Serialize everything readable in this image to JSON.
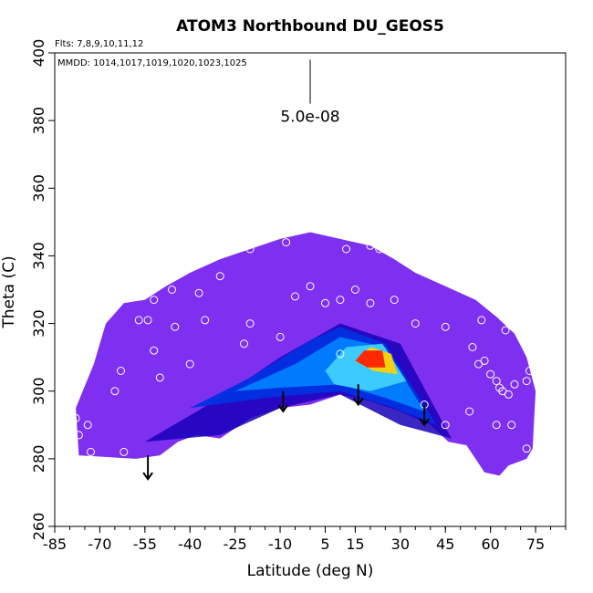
{
  "chart_data": {
    "type": "heatmap",
    "title": "ATOM3 Northbound DU_GEOS5",
    "flights_label": "Flts: 7,8,9,10,11,12",
    "dates_label": "MMDD: 1014,1017,1019,1020,1023,1025",
    "xlabel": "Latitude (deg N)",
    "ylabel": "Theta (C)",
    "xlim": [
      -85,
      85
    ],
    "ylim": [
      260,
      400
    ],
    "x_ticks": [
      -85,
      -70,
      -55,
      -40,
      -25,
      -10,
      5,
      15,
      30,
      45,
      60,
      75
    ],
    "y_ticks": [
      260,
      280,
      300,
      320,
      340,
      360,
      380,
      400
    ],
    "scale_bar": {
      "label": "5.0e-08",
      "x": 0,
      "y_top": 398,
      "y_bottom": 385
    },
    "colors": {
      "background_field": "#7f2ff0",
      "low": "#1a00c8",
      "mid": "#00a8ff",
      "high_light": "#e0f8ff",
      "peak": "#ff2000",
      "peak_edge": "#ffd000",
      "markers": "#ffffff",
      "arrows": "#000000"
    },
    "field_outline": [
      [
        -77,
        281
      ],
      [
        -78,
        295
      ],
      [
        -72,
        308
      ],
      [
        -68,
        320
      ],
      [
        -62,
        326
      ],
      [
        -55,
        327
      ],
      [
        -48,
        331
      ],
      [
        -40,
        335
      ],
      [
        -30,
        339
      ],
      [
        -20,
        342
      ],
      [
        -10,
        345
      ],
      [
        0,
        347
      ],
      [
        10,
        345
      ],
      [
        20,
        343
      ],
      [
        28,
        339
      ],
      [
        35,
        335
      ],
      [
        45,
        331
      ],
      [
        55,
        327
      ],
      [
        62,
        322
      ],
      [
        68,
        317
      ],
      [
        72,
        310
      ],
      [
        75,
        300
      ],
      [
        74,
        283
      ],
      [
        72,
        280
      ],
      [
        66,
        278
      ],
      [
        63,
        275
      ],
      [
        58,
        276
      ],
      [
        52,
        284
      ],
      [
        46,
        285
      ],
      [
        40,
        290
      ],
      [
        30,
        294
      ],
      [
        20,
        297
      ],
      [
        10,
        299
      ],
      [
        0,
        296
      ],
      [
        -10,
        295
      ],
      [
        -20,
        292
      ],
      [
        -30,
        286
      ],
      [
        -38,
        287
      ],
      [
        -44,
        285
      ],
      [
        -50,
        281
      ],
      [
        -58,
        280
      ]
    ],
    "plume_layers": [
      {
        "level": 1,
        "points": [
          [
            -55,
            285
          ],
          [
            -30,
            298
          ],
          [
            -10,
            310
          ],
          [
            10,
            320
          ],
          [
            30,
            314
          ],
          [
            47,
            286
          ],
          [
            30,
            290
          ],
          [
            10,
            299
          ],
          [
            -10,
            295
          ],
          [
            -30,
            287
          ]
        ]
      },
      {
        "level": 2,
        "points": [
          [
            -40,
            295
          ],
          [
            -20,
            304
          ],
          [
            0,
            315
          ],
          [
            10,
            319
          ],
          [
            25,
            314
          ],
          [
            42,
            290
          ],
          [
            28,
            295
          ],
          [
            10,
            300
          ],
          [
            -15,
            298
          ]
        ]
      },
      {
        "level": 3,
        "points": [
          [
            -25,
            300
          ],
          [
            -5,
            308
          ],
          [
            10,
            316
          ],
          [
            25,
            313
          ],
          [
            38,
            294
          ],
          [
            25,
            298
          ],
          [
            10,
            302
          ],
          [
            -10,
            301
          ]
        ]
      },
      {
        "level": 4,
        "points": [
          [
            5,
            306
          ],
          [
            12,
            313
          ],
          [
            24,
            314
          ],
          [
            32,
            303
          ],
          [
            20,
            300
          ],
          [
            8,
            302
          ]
        ]
      },
      {
        "level": 5,
        "points": [
          [
            15,
            309
          ],
          [
            20,
            313
          ],
          [
            27,
            311
          ],
          [
            29,
            305
          ],
          [
            21,
            306
          ]
        ]
      },
      {
        "level": 6,
        "points": [
          [
            15,
            309
          ],
          [
            18,
            312
          ],
          [
            24,
            312
          ],
          [
            25,
            307
          ],
          [
            19,
            307
          ]
        ]
      }
    ],
    "sample_points": [
      [
        -20,
        342
      ],
      [
        -8,
        344
      ],
      [
        12,
        342
      ],
      [
        20,
        343
      ],
      [
        23,
        342
      ],
      [
        -30,
        334
      ],
      [
        -37,
        329
      ],
      [
        -46,
        330
      ],
      [
        -52,
        327
      ],
      [
        -67,
        325
      ],
      [
        -57,
        321
      ],
      [
        -54,
        321
      ],
      [
        -45,
        319
      ],
      [
        -35,
        321
      ],
      [
        -20,
        320
      ],
      [
        -10,
        316
      ],
      [
        -5,
        328
      ],
      [
        0,
        331
      ],
      [
        5,
        326
      ],
      [
        10,
        327
      ],
      [
        15,
        330
      ],
      [
        20,
        326
      ],
      [
        28,
        327
      ],
      [
        35,
        320
      ],
      [
        45,
        319
      ],
      [
        57,
        321
      ],
      [
        65,
        318
      ],
      [
        -40,
        308
      ],
      [
        -50,
        304
      ],
      [
        -52,
        312
      ],
      [
        -63,
        306
      ],
      [
        -65,
        300
      ],
      [
        -75,
        307
      ],
      [
        -78,
        292
      ],
      [
        -74,
        290
      ],
      [
        -77,
        287
      ],
      [
        -73,
        282
      ],
      [
        -62,
        282
      ],
      [
        -22,
        314
      ],
      [
        10,
        311
      ],
      [
        54,
        313
      ],
      [
        56,
        308
      ],
      [
        58,
        309
      ],
      [
        60,
        305
      ],
      [
        62,
        303
      ],
      [
        63,
        301
      ],
      [
        64,
        300
      ],
      [
        66,
        299
      ],
      [
        68,
        302
      ],
      [
        72,
        303
      ],
      [
        73,
        306
      ],
      [
        45,
        290
      ],
      [
        53,
        294
      ],
      [
        62,
        290
      ],
      [
        67,
        290
      ],
      [
        72,
        283
      ],
      [
        38,
        296
      ]
    ],
    "arrows": [
      {
        "x": -54,
        "y_top": 281,
        "y_bottom": 274
      },
      {
        "x": -9,
        "y_top": 300,
        "y_bottom": 294
      },
      {
        "x": 16,
        "y_top": 302,
        "y_bottom": 296
      },
      {
        "x": 38,
        "y_top": 296,
        "y_bottom": 290
      }
    ]
  }
}
